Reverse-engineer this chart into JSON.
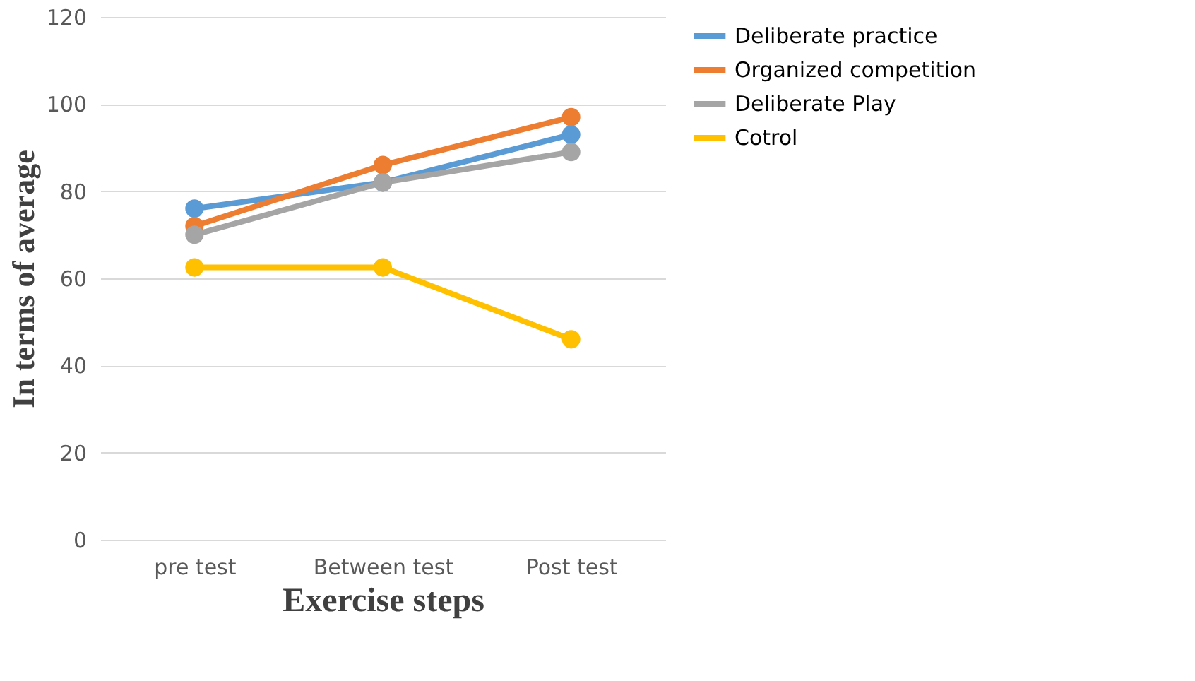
{
  "chart_data": {
    "type": "line",
    "xlabel": "Exercise steps",
    "ylabel": "In terms of average",
    "categories": [
      "pre test",
      "Between test",
      "Post test"
    ],
    "series": [
      {
        "name": "Deliberate practice",
        "color": "#5b9bd5",
        "values": [
          76,
          82,
          93
        ]
      },
      {
        "name": "Organized competition",
        "color": "#ed7d31",
        "values": [
          72,
          86,
          97
        ]
      },
      {
        "name": "Deliberate Play",
        "color": "#a5a5a5",
        "values": [
          70,
          82,
          89
        ]
      },
      {
        "name": "Cotrol",
        "color": "#ffc000",
        "values": [
          62.5,
          62.5,
          46
        ]
      }
    ],
    "ylim": [
      0,
      120
    ],
    "yticks": [
      0,
      20,
      40,
      60,
      80,
      100,
      120
    ],
    "grid": "y",
    "legend": "right",
    "marker": "circle",
    "line_style": "solid"
  }
}
